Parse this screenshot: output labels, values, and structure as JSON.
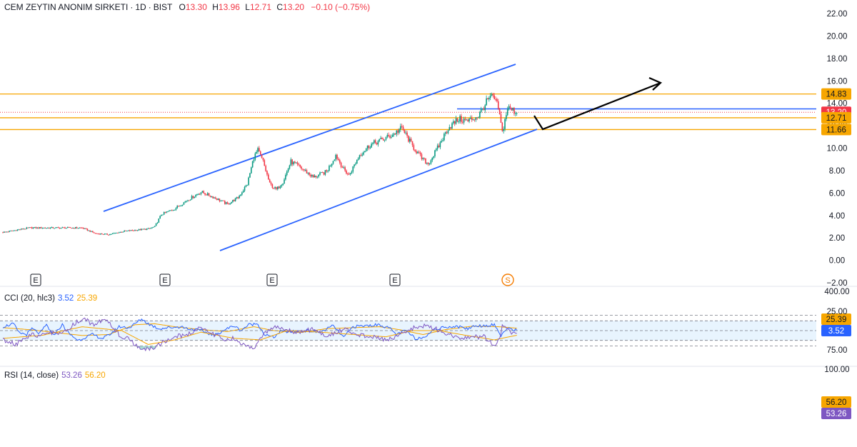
{
  "header": {
    "symbol": "CEM ZEYTIN ANONIM SIRKETI",
    "interval": "1D",
    "exchange": "BIST",
    "open_label": "O",
    "open": "13.30",
    "high_label": "H",
    "high": "13.96",
    "low_label": "L",
    "low": "12.71",
    "close_label": "C",
    "close": "13.20",
    "change": "−0.10 (−0.75%)"
  },
  "colors": {
    "up": "#089981",
    "down": "#f23645",
    "channel": "#2962ff",
    "level": "#f7a600",
    "arrow": "#000000",
    "cci": "#2962ff",
    "cci_ma": "#f7a600",
    "rsi": "#7e57c2",
    "rsi_ma": "#f7a600"
  },
  "price_axis": {
    "ticks": [
      "22.00",
      "20.00",
      "18.00",
      "16.00",
      "14.00",
      "12.00",
      "10.00",
      "8.00",
      "6.00",
      "4.00",
      "2.00",
      "0.00",
      "−2.00"
    ]
  },
  "price_tags": [
    {
      "label": "14.83",
      "value": 14.83,
      "bg": "#f7a600",
      "fg": "#131722"
    },
    {
      "label": "13.20",
      "value": 13.2,
      "bg": "#f23645",
      "fg": "#ffffff"
    },
    {
      "label": "12.71",
      "value": 12.71,
      "bg": "#f7a600",
      "fg": "#131722"
    },
    {
      "label": "11.66",
      "value": 11.66,
      "bg": "#f7a600",
      "fg": "#131722"
    }
  ],
  "event_markers": [
    "E",
    "E",
    "E",
    "E",
    "S"
  ],
  "cci": {
    "title": "CCI (20, hlc3)",
    "value": "3.52",
    "ma_value": "25.39",
    "axis_label": "400.00",
    "tags": [
      {
        "label": "25.39",
        "bg": "#f7a600",
        "fg": "#131722"
      },
      {
        "label": "3.52",
        "bg": "#2962ff",
        "fg": "#ffffff"
      }
    ]
  },
  "rsi": {
    "title": "RSI (14, close)",
    "value": "53.26",
    "ma_value": "56.20",
    "axis_labels": [
      "100.00",
      "75.00",
      "25.00"
    ],
    "tags": [
      {
        "label": "56.20",
        "bg": "#f7a600",
        "fg": "#131722"
      },
      {
        "label": "53.26",
        "bg": "#7e57c2",
        "fg": "#ffffff"
      }
    ]
  },
  "chart_data": {
    "type": "candlestick",
    "title": "CEM ZEYTIN ANONIM SIRKETI · 1D · BIST",
    "ylim": [
      -2,
      22
    ],
    "levels": [
      14.83,
      12.71,
      11.66
    ],
    "last_price": 13.2,
    "blue_level": 13.5,
    "series_anchor": [
      [
        0,
        2.5
      ],
      [
        20,
        2.9
      ],
      [
        40,
        2.9
      ],
      [
        55,
        2.9
      ],
      [
        60,
        2.9
      ],
      [
        70,
        2.4
      ],
      [
        80,
        2.3
      ],
      [
        92,
        2.6
      ],
      [
        110,
        2.8
      ],
      [
        115,
        3.0
      ],
      [
        120,
        4.1
      ],
      [
        130,
        4.6
      ],
      [
        140,
        5.4
      ],
      [
        150,
        6.1
      ],
      [
        160,
        5.6
      ],
      [
        170,
        5.0
      ],
      [
        178,
        5.6
      ],
      [
        185,
        6.8
      ],
      [
        190,
        9.2
      ],
      [
        193,
        9.8
      ],
      [
        197,
        8.8
      ],
      [
        202,
        6.8
      ],
      [
        207,
        6.3
      ],
      [
        212,
        7.0
      ],
      [
        218,
        8.8
      ],
      [
        225,
        8.3
      ],
      [
        235,
        7.4
      ],
      [
        245,
        7.9
      ],
      [
        252,
        9.4
      ],
      [
        258,
        8.1
      ],
      [
        262,
        7.6
      ],
      [
        270,
        9.4
      ],
      [
        278,
        10.3
      ],
      [
        288,
        10.8
      ],
      [
        295,
        11.2
      ],
      [
        302,
        11.8
      ],
      [
        310,
        10.2
      ],
      [
        317,
        9.1
      ],
      [
        322,
        8.6
      ],
      [
        330,
        10.2
      ],
      [
        337,
        11.8
      ],
      [
        345,
        12.6
      ],
      [
        352,
        12.4
      ],
      [
        360,
        12.9
      ],
      [
        367,
        14.3
      ],
      [
        371,
        14.6
      ],
      [
        375,
        13.6
      ],
      [
        378,
        11.4
      ],
      [
        382,
        13.6
      ],
      [
        389,
        13.2
      ]
    ],
    "cci_anchor": [
      [
        0,
        40
      ],
      [
        8,
        70
      ],
      [
        12,
        -20
      ],
      [
        18,
        -40
      ],
      [
        22,
        20
      ],
      [
        28,
        -30
      ],
      [
        33,
        60
      ],
      [
        38,
        -50
      ],
      [
        45,
        60
      ],
      [
        50,
        -30
      ],
      [
        57,
        -100
      ],
      [
        62,
        -70
      ],
      [
        68,
        -40
      ],
      [
        75,
        -80
      ],
      [
        80,
        -50
      ],
      [
        88,
        40
      ],
      [
        96,
        30
      ],
      [
        105,
        120
      ],
      [
        110,
        70
      ],
      [
        118,
        20
      ],
      [
        125,
        30
      ],
      [
        135,
        40
      ],
      [
        140,
        20
      ],
      [
        150,
        0
      ],
      [
        160,
        -50
      ],
      [
        168,
        10
      ],
      [
        175,
        50
      ],
      [
        180,
        0
      ],
      [
        186,
        60
      ],
      [
        193,
        70
      ],
      [
        198,
        -40
      ],
      [
        205,
        -70
      ],
      [
        210,
        -10
      ],
      [
        220,
        -10
      ],
      [
        230,
        0
      ],
      [
        240,
        -20
      ],
      [
        250,
        50
      ],
      [
        258,
        -70
      ],
      [
        265,
        40
      ],
      [
        275,
        50
      ],
      [
        285,
        60
      ],
      [
        292,
        30
      ],
      [
        298,
        -40
      ],
      [
        305,
        0
      ],
      [
        312,
        -80
      ],
      [
        318,
        -70
      ],
      [
        325,
        0
      ],
      [
        335,
        40
      ],
      [
        345,
        40
      ],
      [
        352,
        20
      ],
      [
        357,
        50
      ],
      [
        364,
        50
      ],
      [
        372,
        60
      ],
      [
        377,
        -50
      ],
      [
        380,
        0
      ],
      [
        384,
        20
      ],
      [
        389,
        4
      ]
    ],
    "cci_ma_anchor": [
      [
        0,
        30
      ],
      [
        20,
        10
      ],
      [
        40,
        -20
      ],
      [
        60,
        -50
      ],
      [
        80,
        -40
      ],
      [
        100,
        60
      ],
      [
        115,
        70
      ],
      [
        130,
        40
      ],
      [
        150,
        10
      ],
      [
        170,
        -10
      ],
      [
        190,
        40
      ],
      [
        205,
        0
      ],
      [
        225,
        -20
      ],
      [
        245,
        20
      ],
      [
        265,
        30
      ],
      [
        285,
        40
      ],
      [
        300,
        10
      ],
      [
        318,
        -40
      ],
      [
        335,
        10
      ],
      [
        355,
        45
      ],
      [
        375,
        40
      ],
      [
        389,
        25
      ]
    ],
    "rsi_anchor": [
      [
        0,
        62
      ],
      [
        10,
        68
      ],
      [
        15,
        60
      ],
      [
        22,
        55
      ],
      [
        28,
        58
      ],
      [
        35,
        52
      ],
      [
        45,
        55
      ],
      [
        55,
        40
      ],
      [
        62,
        35
      ],
      [
        68,
        42
      ],
      [
        75,
        37
      ],
      [
        80,
        40
      ],
      [
        88,
        55
      ],
      [
        96,
        62
      ],
      [
        102,
        72
      ],
      [
        110,
        75
      ],
      [
        118,
        68
      ],
      [
        125,
        62
      ],
      [
        130,
        58
      ],
      [
        140,
        55
      ],
      [
        150,
        45
      ],
      [
        160,
        55
      ],
      [
        168,
        62
      ],
      [
        175,
        60
      ],
      [
        182,
        68
      ],
      [
        189,
        74
      ],
      [
        195,
        60
      ],
      [
        202,
        48
      ],
      [
        208,
        45
      ],
      [
        215,
        50
      ],
      [
        225,
        52
      ],
      [
        235,
        48
      ],
      [
        245,
        58
      ],
      [
        252,
        52
      ],
      [
        260,
        48
      ],
      [
        268,
        55
      ],
      [
        278,
        58
      ],
      [
        290,
        62
      ],
      [
        298,
        58
      ],
      [
        305,
        50
      ],
      [
        312,
        46
      ],
      [
        320,
        44
      ],
      [
        328,
        48
      ],
      [
        338,
        55
      ],
      [
        348,
        60
      ],
      [
        356,
        58
      ],
      [
        364,
        58
      ],
      [
        372,
        70
      ],
      [
        376,
        62
      ],
      [
        378,
        40
      ],
      [
        384,
        52
      ],
      [
        389,
        53
      ]
    ],
    "rsi_ma_anchor": [
      [
        0,
        60
      ],
      [
        30,
        56
      ],
      [
        60,
        45
      ],
      [
        90,
        50
      ],
      [
        110,
        68
      ],
      [
        130,
        62
      ],
      [
        150,
        52
      ],
      [
        175,
        60
      ],
      [
        195,
        62
      ],
      [
        215,
        50
      ],
      [
        240,
        52
      ],
      [
        265,
        55
      ],
      [
        290,
        58
      ],
      [
        310,
        50
      ],
      [
        330,
        50
      ],
      [
        350,
        56
      ],
      [
        372,
        62
      ],
      [
        389,
        56
      ]
    ]
  }
}
